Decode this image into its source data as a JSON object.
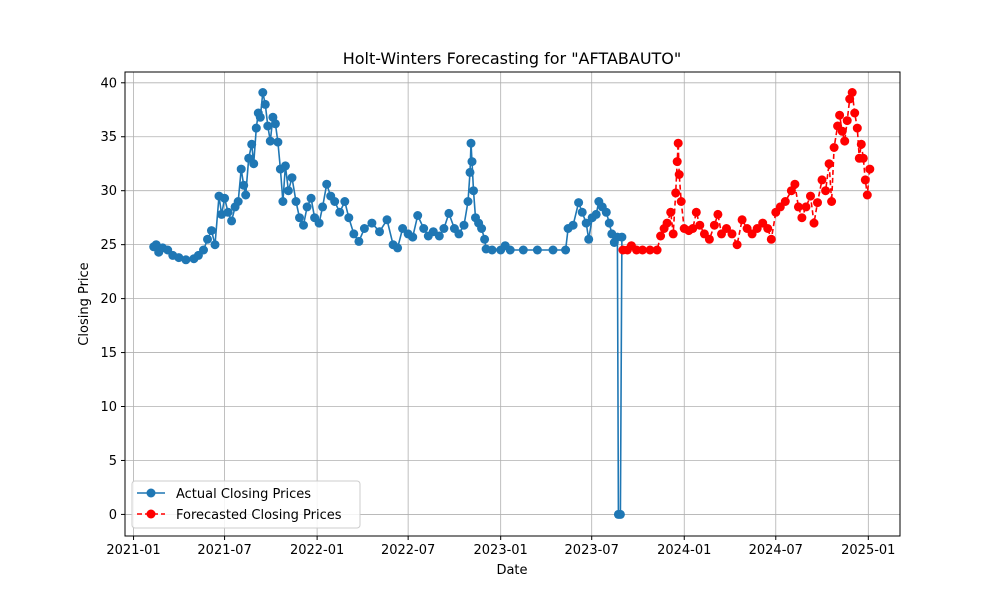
{
  "chart_data": {
    "type": "line",
    "title": "Holt-Winters Forecasting for \"AFTABAUTO\"",
    "xlabel": "Date",
    "ylabel": "Closing Price",
    "ylim": [
      -2,
      41
    ],
    "xlim": [
      "2020-12-15",
      "2025-03-05"
    ],
    "yticks": [
      0,
      5,
      10,
      15,
      20,
      25,
      30,
      35,
      40
    ],
    "xticks": [
      "2021-01",
      "2021-07",
      "2022-01",
      "2022-07",
      "2023-01",
      "2023-07",
      "2024-01",
      "2024-07",
      "2025-01"
    ],
    "grid": true,
    "legend_position": "lower-left",
    "colors": {
      "actual": "#1f77b4",
      "forecast": "#ff0000",
      "grid": "#b0b0b0"
    },
    "series": [
      {
        "name": "Actual Closing Prices",
        "style": "solid",
        "points": [
          [
            "2021-02-10",
            24.8
          ],
          [
            "2021-02-15",
            25.0
          ],
          [
            "2021-02-20",
            24.3
          ],
          [
            "2021-02-28",
            24.7
          ],
          [
            "2021-03-10",
            24.5
          ],
          [
            "2021-03-20",
            24.0
          ],
          [
            "2021-04-01",
            23.8
          ],
          [
            "2021-04-15",
            23.6
          ],
          [
            "2021-05-01",
            23.7
          ],
          [
            "2021-05-10",
            24.0
          ],
          [
            "2021-05-20",
            24.5
          ],
          [
            "2021-05-28",
            25.5
          ],
          [
            "2021-06-05",
            26.3
          ],
          [
            "2021-06-12",
            25.0
          ],
          [
            "2021-06-20",
            29.5
          ],
          [
            "2021-06-25",
            27.8
          ],
          [
            "2021-07-01",
            29.3
          ],
          [
            "2021-07-08",
            28.0
          ],
          [
            "2021-07-15",
            27.2
          ],
          [
            "2021-07-22",
            28.5
          ],
          [
            "2021-07-28",
            29.0
          ],
          [
            "2021-08-03",
            32.0
          ],
          [
            "2021-08-08",
            30.5
          ],
          [
            "2021-08-12",
            29.6
          ],
          [
            "2021-08-18",
            33.0
          ],
          [
            "2021-08-24",
            34.3
          ],
          [
            "2021-08-28",
            32.5
          ],
          [
            "2021-09-02",
            35.8
          ],
          [
            "2021-09-06",
            37.2
          ],
          [
            "2021-09-10",
            36.8
          ],
          [
            "2021-09-15",
            39.1
          ],
          [
            "2021-09-20",
            38.0
          ],
          [
            "2021-09-25",
            36.0
          ],
          [
            "2021-09-30",
            34.6
          ],
          [
            "2021-10-05",
            36.8
          ],
          [
            "2021-10-10",
            36.2
          ],
          [
            "2021-10-15",
            34.5
          ],
          [
            "2021-10-20",
            32.0
          ],
          [
            "2021-10-25",
            29.0
          ],
          [
            "2021-10-30",
            32.3
          ],
          [
            "2021-11-05",
            30.0
          ],
          [
            "2021-11-12",
            31.2
          ],
          [
            "2021-11-20",
            29.0
          ],
          [
            "2021-11-27",
            27.5
          ],
          [
            "2021-12-05",
            26.8
          ],
          [
            "2021-12-12",
            28.5
          ],
          [
            "2021-12-20",
            29.3
          ],
          [
            "2021-12-27",
            27.5
          ],
          [
            "2022-01-05",
            27.0
          ],
          [
            "2022-01-12",
            28.5
          ],
          [
            "2022-01-20",
            30.6
          ],
          [
            "2022-01-28",
            29.5
          ],
          [
            "2022-02-05",
            29.0
          ],
          [
            "2022-02-15",
            28.0
          ],
          [
            "2022-02-25",
            29.0
          ],
          [
            "2022-03-05",
            27.5
          ],
          [
            "2022-03-15",
            26.0
          ],
          [
            "2022-03-25",
            25.3
          ],
          [
            "2022-04-05",
            26.5
          ],
          [
            "2022-04-20",
            27.0
          ],
          [
            "2022-05-05",
            26.2
          ],
          [
            "2022-05-20",
            27.3
          ],
          [
            "2022-06-01",
            25.0
          ],
          [
            "2022-06-10",
            24.7
          ],
          [
            "2022-06-20",
            26.5
          ],
          [
            "2022-07-01",
            26.0
          ],
          [
            "2022-07-10",
            25.7
          ],
          [
            "2022-07-20",
            27.7
          ],
          [
            "2022-08-01",
            26.5
          ],
          [
            "2022-08-10",
            25.8
          ],
          [
            "2022-08-20",
            26.2
          ],
          [
            "2022-09-01",
            25.8
          ],
          [
            "2022-09-10",
            26.5
          ],
          [
            "2022-09-20",
            27.9
          ],
          [
            "2022-10-01",
            26.5
          ],
          [
            "2022-10-10",
            26.0
          ],
          [
            "2022-10-20",
            26.8
          ],
          [
            "2022-10-28",
            29.0
          ],
          [
            "2022-11-01",
            31.7
          ],
          [
            "2022-11-03",
            34.4
          ],
          [
            "2022-11-05",
            32.7
          ],
          [
            "2022-11-08",
            30.0
          ],
          [
            "2022-11-12",
            27.5
          ],
          [
            "2022-11-18",
            27.0
          ],
          [
            "2022-11-24",
            26.5
          ],
          [
            "2022-11-30",
            25.5
          ],
          [
            "2022-12-03",
            24.6
          ],
          [
            "2022-12-15",
            24.5
          ],
          [
            "2023-01-01",
            24.5
          ],
          [
            "2023-01-10",
            24.9
          ],
          [
            "2023-01-20",
            24.5
          ],
          [
            "2023-02-15",
            24.5
          ],
          [
            "2023-03-15",
            24.5
          ],
          [
            "2023-04-15",
            24.5
          ],
          [
            "2023-05-10",
            24.5
          ],
          [
            "2023-05-15",
            26.5
          ],
          [
            "2023-05-25",
            26.8
          ],
          [
            "2023-06-05",
            28.9
          ],
          [
            "2023-06-12",
            28.0
          ],
          [
            "2023-06-20",
            27.0
          ],
          [
            "2023-06-25",
            25.5
          ],
          [
            "2023-07-02",
            27.5
          ],
          [
            "2023-07-10",
            27.8
          ],
          [
            "2023-07-15",
            29.0
          ],
          [
            "2023-07-22",
            28.5
          ],
          [
            "2023-07-30",
            28.0
          ],
          [
            "2023-08-05",
            27.0
          ],
          [
            "2023-08-10",
            26.0
          ],
          [
            "2023-08-15",
            25.2
          ],
          [
            "2023-08-21",
            25.7
          ],
          [
            "2023-08-23",
            0.0
          ],
          [
            "2023-08-27",
            0.0
          ],
          [
            "2023-08-30",
            25.7
          ]
        ]
      },
      {
        "name": "Forecasted Closing Prices",
        "style": "dashed",
        "points": [
          [
            "2023-09-01",
            24.5
          ],
          [
            "2023-09-10",
            24.5
          ],
          [
            "2023-09-18",
            24.9
          ],
          [
            "2023-09-28",
            24.5
          ],
          [
            "2023-10-10",
            24.5
          ],
          [
            "2023-10-25",
            24.5
          ],
          [
            "2023-11-08",
            24.5
          ],
          [
            "2023-11-15",
            25.8
          ],
          [
            "2023-11-22",
            26.5
          ],
          [
            "2023-11-28",
            27.0
          ],
          [
            "2023-12-05",
            28.0
          ],
          [
            "2023-12-10",
            26.0
          ],
          [
            "2023-12-15",
            29.8
          ],
          [
            "2023-12-18",
            32.7
          ],
          [
            "2023-12-20",
            34.4
          ],
          [
            "2023-12-22",
            31.5
          ],
          [
            "2023-12-26",
            29.0
          ],
          [
            "2024-01-01",
            26.5
          ],
          [
            "2024-01-10",
            26.3
          ],
          [
            "2024-01-18",
            26.5
          ],
          [
            "2024-01-25",
            28.0
          ],
          [
            "2024-02-01",
            26.8
          ],
          [
            "2024-02-10",
            26.0
          ],
          [
            "2024-02-20",
            25.5
          ],
          [
            "2024-03-01",
            26.8
          ],
          [
            "2024-03-08",
            27.8
          ],
          [
            "2024-03-15",
            26.0
          ],
          [
            "2024-03-25",
            26.5
          ],
          [
            "2024-04-05",
            26.0
          ],
          [
            "2024-04-15",
            25.0
          ],
          [
            "2024-04-25",
            27.3
          ],
          [
            "2024-05-05",
            26.5
          ],
          [
            "2024-05-15",
            26.0
          ],
          [
            "2024-05-25",
            26.5
          ],
          [
            "2024-06-05",
            27.0
          ],
          [
            "2024-06-15",
            26.5
          ],
          [
            "2024-06-22",
            25.5
          ],
          [
            "2024-07-01",
            28.0
          ],
          [
            "2024-07-10",
            28.5
          ],
          [
            "2024-07-20",
            29.0
          ],
          [
            "2024-08-01",
            30.0
          ],
          [
            "2024-08-08",
            30.6
          ],
          [
            "2024-08-15",
            28.5
          ],
          [
            "2024-08-22",
            27.5
          ],
          [
            "2024-08-30",
            28.5
          ],
          [
            "2024-09-08",
            29.5
          ],
          [
            "2024-09-15",
            27.0
          ],
          [
            "2024-09-22",
            28.9
          ],
          [
            "2024-10-01",
            31.0
          ],
          [
            "2024-10-08",
            30.0
          ],
          [
            "2024-10-15",
            32.5
          ],
          [
            "2024-10-20",
            29.0
          ],
          [
            "2024-10-25",
            34.0
          ],
          [
            "2024-11-01",
            36.0
          ],
          [
            "2024-11-05",
            37.0
          ],
          [
            "2024-11-10",
            35.5
          ],
          [
            "2024-11-15",
            34.6
          ],
          [
            "2024-11-20",
            36.5
          ],
          [
            "2024-11-25",
            38.5
          ],
          [
            "2024-11-30",
            39.1
          ],
          [
            "2024-12-05",
            37.2
          ],
          [
            "2024-12-10",
            35.8
          ],
          [
            "2024-12-14",
            33.0
          ],
          [
            "2024-12-18",
            34.3
          ],
          [
            "2024-12-22",
            33.0
          ],
          [
            "2024-12-26",
            31.0
          ],
          [
            "2024-12-30",
            29.6
          ],
          [
            "2025-01-04",
            32.0
          ]
        ]
      }
    ]
  }
}
